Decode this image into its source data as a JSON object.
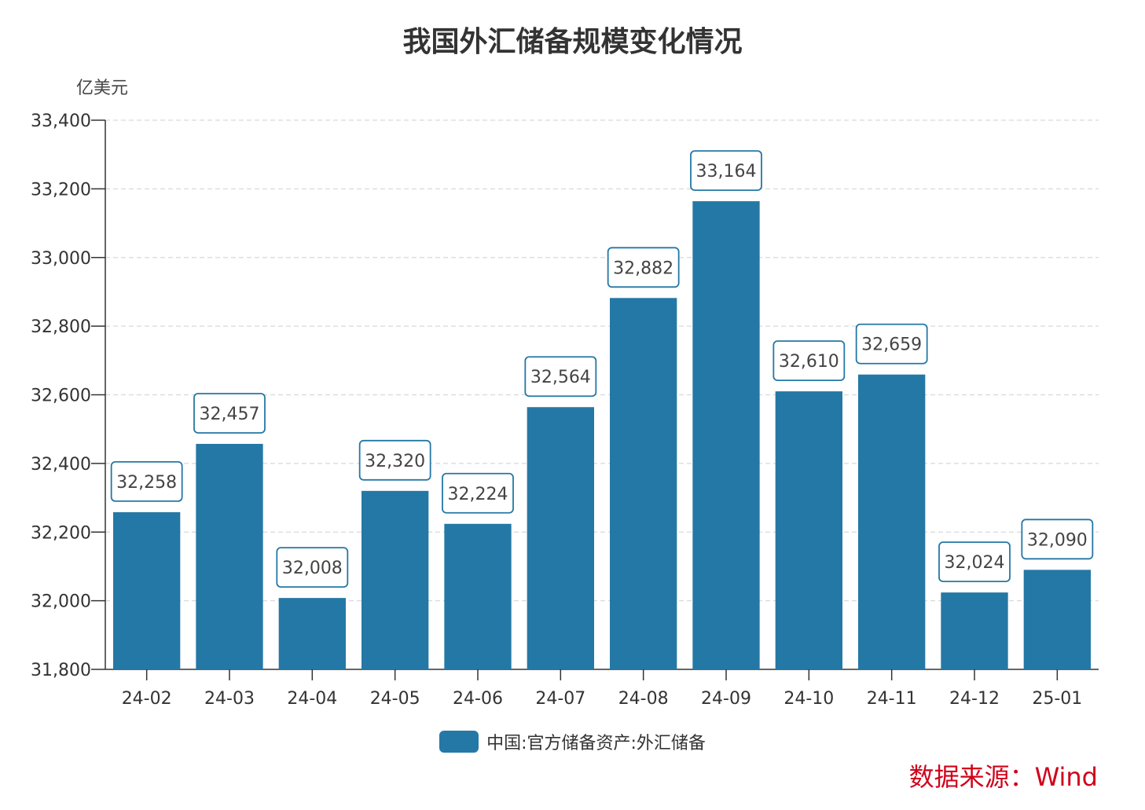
{
  "chart_data": {
    "type": "bar",
    "title": "我国外汇储备规模变化情况",
    "ylabel": "亿美元",
    "xlabel": "",
    "categories": [
      "24-02",
      "24-03",
      "24-04",
      "24-05",
      "24-06",
      "24-07",
      "24-08",
      "24-09",
      "24-10",
      "24-11",
      "24-12",
      "25-01"
    ],
    "series": [
      {
        "name": "中国:官方储备资产:外汇储备",
        "values": [
          32258,
          32457,
          32008,
          32320,
          32224,
          32564,
          32882,
          33164,
          32610,
          32659,
          32024,
          32090
        ]
      }
    ],
    "value_labels": [
      "32,258",
      "32,457",
      "32,008",
      "32,320",
      "32,224",
      "32,564",
      "32,882",
      "33,164",
      "32,610",
      "32,659",
      "32,024",
      "32,090"
    ],
    "ylim": [
      31800,
      33400
    ],
    "yticks": [
      31800,
      32000,
      32200,
      32400,
      32600,
      32800,
      33000,
      33200,
      33400
    ],
    "ytick_labels": [
      "31,800",
      "32,000",
      "32,200",
      "32,400",
      "32,600",
      "32,800",
      "33,000",
      "33,200",
      "33,400"
    ],
    "grid": true,
    "legend_position": "bottom-center",
    "colors": {
      "bar": "#2478a5",
      "grid": "#d9d9d9",
      "axis": "#333333",
      "label_border": "#2478a5"
    }
  },
  "source": "数据来源：Wind"
}
